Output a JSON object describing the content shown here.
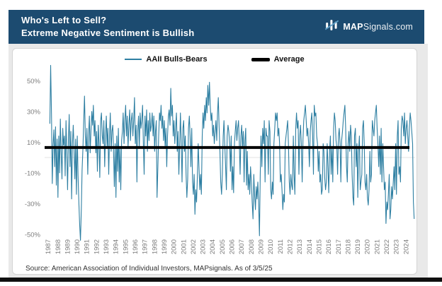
{
  "header": {
    "title_line1": "Who's Left to Sell?",
    "title_line2": "Extreme Negative Sentiment is Bullish",
    "logo": {
      "icon": "mapsignals-bars-logo-icon",
      "brand_bold": "MAP",
      "brand_rest": "Signals.com"
    }
  },
  "footer": {
    "source_note": "Source: American Association of Individual Investors, MAPsignals. As of 3/5/25"
  },
  "colors": {
    "header_navy": "#1c4b70",
    "series_teal": "#2e7fa2",
    "average_black": "#000000",
    "axis_text_gray": "#7d7d7d",
    "zero_gridline": "#e3e3e3",
    "card_background": "#ffffff",
    "backdrop_gray": "#e9e9e9",
    "bottom_bar_black": "#0f0f0f"
  },
  "chart_data": {
    "type": "line",
    "title": "",
    "xlabel": "",
    "ylabel": "",
    "legend_position": "top",
    "grid": "zero-line-only",
    "ylim": [
      -60,
      65
    ],
    "xlim": [
      1987,
      2025.3
    ],
    "y_ticks": [
      {
        "value": 50,
        "label": "50%"
      },
      {
        "value": 30,
        "label": "30%"
      },
      {
        "value": 10,
        "label": "10%"
      },
      {
        "value": -10,
        "label": "-10%"
      },
      {
        "value": -30,
        "label": "-30%"
      },
      {
        "value": -50,
        "label": "-50%"
      }
    ],
    "x_ticks": [
      1987,
      1988,
      1989,
      1990,
      1991,
      1992,
      1993,
      1994,
      1995,
      1996,
      1997,
      1998,
      1999,
      2000,
      2001,
      2002,
      2003,
      2004,
      2005,
      2006,
      2007,
      2008,
      2009,
      2010,
      2011,
      2012,
      2013,
      2014,
      2015,
      2016,
      2017,
      2018,
      2019,
      2020,
      2021,
      2022,
      2023,
      2024
    ],
    "average": {
      "name": "Average",
      "value": 6.5,
      "color": "#000000"
    },
    "series": [
      {
        "name": "AAII Bulls-Bears",
        "color": "#2e7fa2",
        "unit": "%",
        "start_year": 1987,
        "start_month": 7,
        "frequency": "monthly-approximation-of-weekly",
        "values": [
          22,
          60,
          28,
          -17,
          8,
          18,
          -6,
          20,
          -18,
          12,
          -26,
          14,
          -10,
          25,
          4,
          -14,
          19,
          8,
          14,
          -12,
          24,
          4,
          -21,
          11,
          28,
          -6,
          17,
          -27,
          9,
          21,
          6,
          -14,
          12,
          -24,
          14,
          -12,
          -30,
          -44,
          -54,
          -34,
          -8,
          6,
          24,
          40,
          14,
          4,
          19,
          -11,
          14,
          27,
          3,
          17,
          30,
          21,
          34,
          14,
          24,
          3,
          17,
          -9,
          21,
          9,
          -13,
          24,
          29,
          14,
          9,
          24,
          -6,
          14,
          27,
          7,
          19,
          -11,
          14,
          29,
          4,
          17,
          21,
          4,
          -19,
          9,
          -26,
          14,
          -9,
          19,
          -16,
          7,
          -21,
          11,
          17,
          29,
          9,
          24,
          34,
          14,
          27,
          7,
          21,
          31,
          11,
          24,
          29,
          14,
          24,
          39,
          9,
          21,
          -16,
          17,
          27,
          7,
          29,
          19,
          24,
          34,
          9,
          -11,
          27,
          14,
          31,
          4,
          24,
          11,
          29,
          17,
          21,
          29,
          14,
          27,
          4,
          17,
          24,
          -26,
          -6,
          14,
          29,
          24,
          34,
          19,
          27,
          11,
          24,
          7,
          19,
          -6,
          14,
          27,
          31,
          21,
          45,
          27,
          34,
          14,
          24,
          9,
          19,
          29,
          4,
          17,
          -11,
          7,
          29,
          9,
          -16,
          19,
          24,
          4,
          14,
          -11,
          -26,
          -14,
          19,
          27,
          14,
          -6,
          19,
          -16,
          -24,
          -11,
          -37,
          -21,
          -29,
          -13,
          9,
          -6,
          -21,
          -11,
          -24,
          14,
          29,
          19,
          34,
          24,
          39,
          29,
          47,
          34,
          49,
          34,
          24,
          29,
          14,
          21,
          9,
          17,
          24,
          11,
          29,
          39,
          19,
          4,
          -16,
          -24,
          -11,
          14,
          24,
          9,
          -6,
          -21,
          14,
          21,
          17,
          9,
          -9,
          14,
          -21,
          -6,
          -23,
          9,
          17,
          24,
          11,
          19,
          24,
          11,
          -11,
          14,
          21,
          7,
          17,
          -16,
          11,
          19,
          -18,
          4,
          -21,
          -11,
          -24,
          -6,
          -16,
          -29,
          -40,
          -11,
          -24,
          -34,
          -19,
          -27,
          -16,
          -29,
          -51,
          -11,
          14,
          -6,
          19,
          9,
          24,
          -16,
          19,
          14,
          14,
          -11,
          24,
          17,
          -21,
          -27,
          -16,
          -24,
          9,
          19,
          29,
          24,
          29,
          14,
          19,
          9,
          -16,
          -11,
          -21,
          -34,
          -24,
          -29,
          9,
          14,
          19,
          24,
          9,
          -16,
          -24,
          -11,
          -18,
          -21,
          14,
          -11,
          -24,
          19,
          29,
          19,
          24,
          -11,
          14,
          21,
          9,
          -16,
          11,
          24,
          29,
          34,
          24,
          14,
          19,
          9,
          -6,
          17,
          24,
          29,
          14,
          -11,
          34,
          27,
          29,
          14,
          9,
          -9,
          4,
          -16,
          -11,
          -24,
          -21,
          9,
          4,
          -13,
          -21,
          -16,
          9,
          -6,
          -23,
          4,
          14,
          -11,
          7,
          -16,
          19,
          29,
          24,
          11,
          7,
          -11,
          14,
          19,
          9,
          -16,
          11,
          17,
          24,
          29,
          34,
          19,
          -6,
          -16,
          9,
          17,
          4,
          21,
          14,
          -11,
          -26,
          -31,
          14,
          19,
          -6,
          9,
          -26,
          4,
          14,
          -21,
          -16,
          -11,
          19,
          24,
          9,
          -16,
          -21,
          -11,
          -26,
          -31,
          -21,
          4,
          -16,
          -11,
          24,
          19,
          14,
          24,
          29,
          34,
          19,
          9,
          -6,
          14,
          -11,
          19,
          -16,
          9,
          -6,
          -21,
          -16,
          -43,
          -29,
          -34,
          -24,
          -11,
          -40,
          -34,
          -19,
          -27,
          -16,
          -6,
          -21,
          9,
          -24,
          14,
          24,
          -11,
          -6,
          -16,
          19,
          27,
          24,
          14,
          29,
          9,
          19,
          24,
          14,
          4,
          19,
          29,
          24,
          17,
          9,
          -29,
          -40
        ]
      }
    ]
  }
}
